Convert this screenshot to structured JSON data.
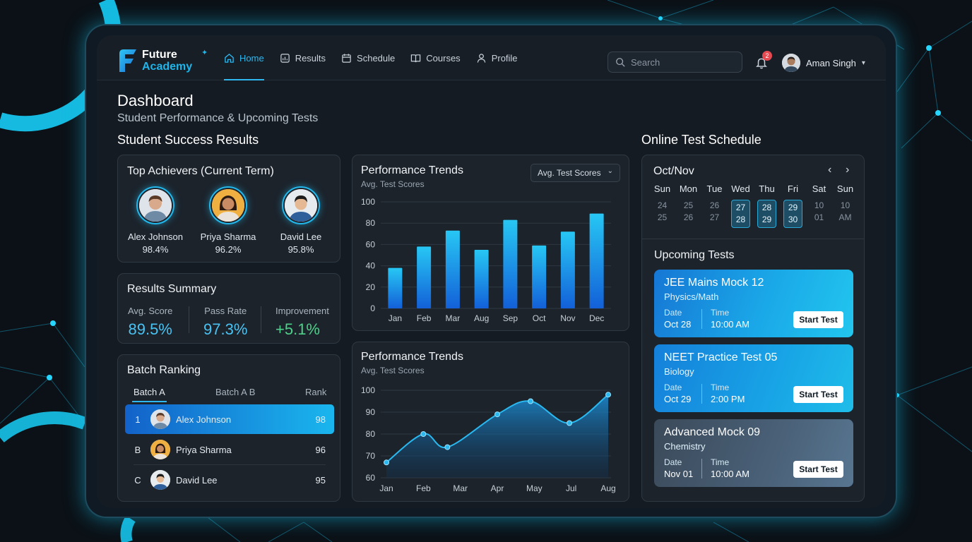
{
  "brand": {
    "line1": "Future",
    "line2": "Academy"
  },
  "nav": [
    {
      "label": "Home",
      "active": true,
      "icon": "home-icon"
    },
    {
      "label": "Results",
      "active": false,
      "icon": "chart-icon"
    },
    {
      "label": "Schedule",
      "active": false,
      "icon": "calendar-icon"
    },
    {
      "label": "Courses",
      "active": false,
      "icon": "book-icon"
    },
    {
      "label": "Profile",
      "active": false,
      "icon": "user-icon"
    }
  ],
  "search": {
    "placeholder": "Search"
  },
  "notifications": {
    "count": "2"
  },
  "user": {
    "name": "Aman Singh"
  },
  "page": {
    "title": "Dashboard",
    "subtitle": "Student Performance & Upcoming Tests"
  },
  "sections": {
    "results": "Student Success Results",
    "schedule": "Online Test Schedule"
  },
  "achievers": {
    "title": "Top Achievers (Current Term)",
    "items": [
      {
        "name": "Alex Johnson",
        "score": "98.4%"
      },
      {
        "name": "Priya Sharma",
        "score": "96.2%"
      },
      {
        "name": "David Lee",
        "score": "95.8%"
      }
    ]
  },
  "summary": {
    "title": "Results Summary",
    "metrics": [
      {
        "label": "Avg. Score",
        "value": "89.5%"
      },
      {
        "label": "Pass Rate",
        "value": "97.3%"
      },
      {
        "label": "Improvement",
        "value": "+5.1%"
      }
    ]
  },
  "ranking": {
    "title": "Batch Ranking",
    "tabs": [
      "Batch A",
      "Batch A B",
      "Rank"
    ],
    "rows": [
      {
        "idx": "1",
        "name": "Alex Johnson",
        "score": "98"
      },
      {
        "idx": "B",
        "name": "Priya Sharma",
        "score": "96"
      },
      {
        "idx": "C",
        "name": "David Lee",
        "score": "95"
      }
    ]
  },
  "bar_card": {
    "title": "Performance Trends",
    "subtitle": "Avg. Test Scores",
    "dropdown": "Avg. Test Scores"
  },
  "line_card": {
    "title": "Performance Trends",
    "subtitle": "Avg. Test Scores"
  },
  "chart_data": [
    {
      "type": "bar",
      "categories": [
        "Jan",
        "Feb",
        "Mar",
        "Aug",
        "Sep",
        "Oct",
        "Nov",
        "Dec"
      ],
      "values": [
        38,
        58,
        73,
        55,
        83,
        59,
        72,
        89
      ],
      "ylim": [
        0,
        100
      ],
      "yticks": [
        "100",
        "80",
        "60",
        "40",
        "20",
        "0"
      ],
      "grid": true
    },
    {
      "type": "area",
      "categories": [
        "Jan",
        "Feb",
        "Mar",
        "Apr",
        "May",
        "Jul",
        "Aug"
      ],
      "x": [
        0,
        1,
        2,
        3,
        4,
        5,
        6
      ],
      "points_x": [
        0,
        1,
        1.65,
        3,
        3.9,
        4.95,
        6
      ],
      "values": [
        67,
        80,
        74,
        89,
        95,
        85,
        98
      ],
      "ylim": [
        60,
        100
      ],
      "yticks": [
        "100",
        "90",
        "80",
        "70",
        "60"
      ],
      "grid": true
    }
  ],
  "calendar": {
    "month": "Oct/Nov",
    "days": [
      "Sun",
      "Mon",
      "Tue",
      "Wed",
      "Thu",
      "Fri",
      "Sat",
      "Sun"
    ],
    "row1": [
      "24",
      "25",
      "26",
      "27",
      "28",
      "29",
      "10",
      "10"
    ],
    "row2": [
      "25",
      "26",
      "27",
      "28",
      "29",
      "30",
      "01",
      "AM"
    ],
    "highlight": [
      3,
      4,
      5
    ]
  },
  "upcoming": {
    "title": "Upcoming Tests",
    "date_label": "Date",
    "time_label": "Time",
    "start_label": "Start Test",
    "tests": [
      {
        "name": "JEE Mains Mock 12",
        "subject": "Physics/Math",
        "date": "Oct 28",
        "time": "10:00 AM"
      },
      {
        "name": "NEET Practice Test 05",
        "subject": "Biology",
        "date": "Oct 29",
        "time": "2:00 PM"
      },
      {
        "name": "Advanced Mock 09",
        "subject": "Chemistry",
        "date": "Nov 01",
        "time": "10:00 AM"
      }
    ]
  },
  "colors": {
    "accent": "#2fb7ef",
    "green": "#4ed08a",
    "badge": "#e54952"
  }
}
